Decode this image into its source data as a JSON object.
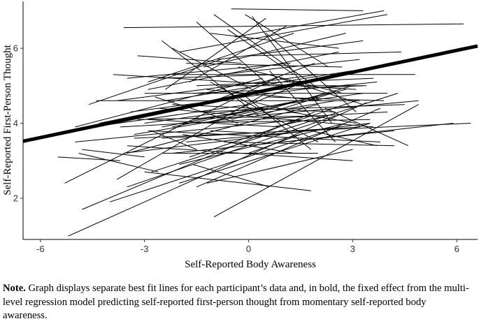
{
  "chart_data": {
    "type": "line",
    "xlabel": "Self-Reported Body Awareness",
    "ylabel": "Self-Reported First-Person Thought",
    "xlim": [
      -6.5,
      6.6
    ],
    "ylim": [
      0.9,
      7.25
    ],
    "xticks": [
      -6,
      -3,
      0,
      3,
      6
    ],
    "yticks": [
      2,
      4,
      6
    ],
    "grid": false,
    "series": [
      {
        "kind": "fixed_effect",
        "bold": true,
        "points": [
          [
            -6.5,
            3.52
          ],
          [
            6.6,
            6.06
          ]
        ]
      },
      {
        "kind": "participant_lines",
        "bold": false,
        "segments": [
          [
            -5.2,
            0.99,
            3.4,
            4.55
          ],
          [
            -4.8,
            1.7,
            1.9,
            4.3
          ],
          [
            -5.3,
            2.4,
            1.0,
            5.3
          ],
          [
            -4.0,
            1.9,
            2.6,
            3.9
          ],
          [
            -3.8,
            2.5,
            0.5,
            4.8
          ],
          [
            -3.5,
            2.3,
            2.5,
            4.2
          ],
          [
            -3.0,
            2.7,
            1.8,
            2.2
          ],
          [
            -3.5,
            3.4,
            3.0,
            3.0
          ],
          [
            -2.0,
            2.4,
            3.5,
            4.0
          ],
          [
            -1.0,
            1.5,
            4.9,
            4.5
          ],
          [
            -1.5,
            2.3,
            3.8,
            4.4
          ],
          [
            -1.2,
            2.4,
            3.0,
            3.3
          ],
          [
            -2.5,
            3.2,
            2.0,
            3.2
          ],
          [
            -2.0,
            2.9,
            2.8,
            4.0
          ],
          [
            -2.8,
            2.7,
            4.3,
            4.8
          ],
          [
            -3.6,
            3.2,
            3.5,
            4.0
          ],
          [
            -3.5,
            3.2,
            2.0,
            4.5
          ],
          [
            -2.9,
            3.8,
            3.8,
            3.5
          ],
          [
            -2.2,
            3.2,
            4.2,
            3.8
          ],
          [
            -1.7,
            3.1,
            3.1,
            4.6
          ],
          [
            -0.7,
            3.5,
            4.2,
            3.4
          ],
          [
            -3.3,
            3.6,
            6.4,
            4.0
          ],
          [
            -3.3,
            3.7,
            2.5,
            4.6
          ],
          [
            -2.5,
            3.6,
            3.2,
            3.9
          ],
          [
            -1.8,
            3.5,
            1.8,
            3.8
          ],
          [
            -5.0,
            3.5,
            1.5,
            4.1
          ],
          [
            -4.5,
            3.9,
            0.0,
            4.5
          ],
          [
            -3.7,
            3.9,
            4.0,
            4.3
          ],
          [
            -3.0,
            4.0,
            3.3,
            4.8
          ],
          [
            -2.5,
            3.9,
            2.0,
            4.7
          ],
          [
            -2.0,
            4.0,
            3.5,
            4.1
          ],
          [
            -1.3,
            4.0,
            2.8,
            4.9
          ],
          [
            -3.2,
            4.1,
            2.2,
            4.2
          ],
          [
            -2.6,
            4.4,
            3.6,
            3.9
          ],
          [
            -1.5,
            4.3,
            4.5,
            4.5
          ],
          [
            -0.5,
            4.1,
            3.0,
            5.0
          ],
          [
            -5.0,
            3.9,
            0.4,
            5.2
          ],
          [
            -4.6,
            4.5,
            -0.8,
            5.7
          ],
          [
            -4.4,
            4.6,
            3.2,
            4.6
          ],
          [
            -3.8,
            4.6,
            2.0,
            5.3
          ],
          [
            -3.4,
            4.3,
            1.5,
            4.9
          ],
          [
            -3.0,
            4.8,
            4.0,
            4.8
          ],
          [
            -2.4,
            4.6,
            3.0,
            5.4
          ],
          [
            -2.2,
            4.5,
            2.5,
            4.3
          ],
          [
            -1.6,
            4.8,
            3.3,
            5.0
          ],
          [
            -1.2,
            4.9,
            2.1,
            4.6
          ],
          [
            -1.0,
            4.6,
            1.9,
            5.6
          ],
          [
            -0.8,
            5.0,
            3.4,
            5.0
          ],
          [
            -3.5,
            5.2,
            1.2,
            5.6
          ],
          [
            -3.9,
            5.3,
            3.1,
            4.9
          ],
          [
            -2.9,
            4.9,
            2.6,
            5.9
          ],
          [
            -2.2,
            5.3,
            4.8,
            5.3
          ],
          [
            -2.6,
            5.2,
            0.9,
            5.3
          ],
          [
            -1.8,
            5.6,
            2.7,
            5.5
          ],
          [
            -0.8,
            5.3,
            3.2,
            5.7
          ],
          [
            -2.9,
            5.1,
            1.3,
            6.4
          ],
          [
            -2.4,
            4.9,
            0.5,
            6.8
          ],
          [
            -1.7,
            5.1,
            1.1,
            6.6
          ],
          [
            -1.3,
            5.5,
            2.8,
            6.4
          ],
          [
            -1.5,
            5.0,
            3.6,
            5.2
          ],
          [
            -0.9,
            5.7,
            3.3,
            6.2
          ],
          [
            -0.4,
            6.3,
            3.9,
            7.0
          ],
          [
            -2.0,
            5.9,
            4.0,
            6.9
          ],
          [
            -1.1,
            6.4,
            2.6,
            6.0
          ],
          [
            -0.6,
            6.5,
            1.3,
            5.3
          ],
          [
            -3.6,
            6.55,
            6.2,
            6.65
          ],
          [
            -0.5,
            7.05,
            3.3,
            7.0
          ],
          [
            -1.0,
            6.9,
            1.9,
            5.0
          ],
          [
            0.1,
            6.85,
            2.4,
            4.0
          ],
          [
            -0.1,
            6.9,
            2.3,
            5.5
          ],
          [
            -2.2,
            6.0,
            0.1,
            4.9
          ],
          [
            -1.5,
            6.7,
            0.6,
            5.0
          ],
          [
            0.1,
            5.8,
            4.4,
            5.9
          ],
          [
            0.9,
            5.2,
            3.3,
            4.5
          ],
          [
            -0.3,
            5.5,
            2.7,
            4.8
          ],
          [
            0.5,
            6.4,
            3.1,
            4.3
          ],
          [
            -1.1,
            5.1,
            2.0,
            3.5
          ],
          [
            -0.2,
            4.8,
            1.8,
            3.3
          ],
          [
            0.6,
            5.4,
            2.5,
            3.5
          ],
          [
            -2.5,
            6.2,
            0.3,
            4.2
          ],
          [
            -3.2,
            5.8,
            -0.2,
            5.6
          ],
          [
            -4.8,
            3.3,
            -3.0,
            3.1
          ],
          [
            -4.9,
            3.2,
            -2.6,
            2.7
          ],
          [
            -5.5,
            3.1,
            -3.7,
            3.0
          ],
          [
            0.0,
            3.2,
            1.5,
            3.7
          ],
          [
            0.3,
            4.2,
            2.4,
            4.8
          ],
          [
            1.2,
            4.3,
            3.1,
            4.0
          ],
          [
            0.5,
            4.7,
            3.9,
            4.6
          ],
          [
            1.8,
            3.8,
            3.7,
            3.4
          ],
          [
            1.0,
            3.5,
            5.9,
            4.0
          ],
          [
            2.2,
            4.4,
            4.6,
            3.4
          ],
          [
            0.2,
            4.2,
            4.9,
            4.6
          ],
          [
            -1.6,
            2.9,
            0.6,
            2.3
          ],
          [
            -1.9,
            3.7,
            1.3,
            3.2
          ],
          [
            -2.8,
            3.8,
            -1.5,
            3.3
          ],
          [
            -2.9,
            4.1,
            0.9,
            3.9
          ],
          [
            -1.6,
            4.1,
            -0.1,
            4.3
          ],
          [
            0.0,
            4.6,
            1.3,
            4.3
          ],
          [
            -0.5,
            4.3,
            1.6,
            5.1
          ],
          [
            -2.7,
            4.7,
            -0.3,
            4.0
          ],
          [
            -1.1,
            3.8,
            0.9,
            3.7
          ],
          [
            0.7,
            3.9,
            2.3,
            4.2
          ],
          [
            -2.2,
            3.9,
            0.4,
            4.4
          ],
          [
            -4.3,
            4.0,
            -2.2,
            4.4
          ],
          [
            1.5,
            4.9,
            3.7,
            5.1
          ]
        ]
      }
    ]
  },
  "note": {
    "label": "Note.",
    "text": " Graph displays separate best fit lines for each participant’s data and, in bold, the fixed effect from the multi-level regression model predicting self-reported first-person thought from momentary self-reported body awareness."
  }
}
